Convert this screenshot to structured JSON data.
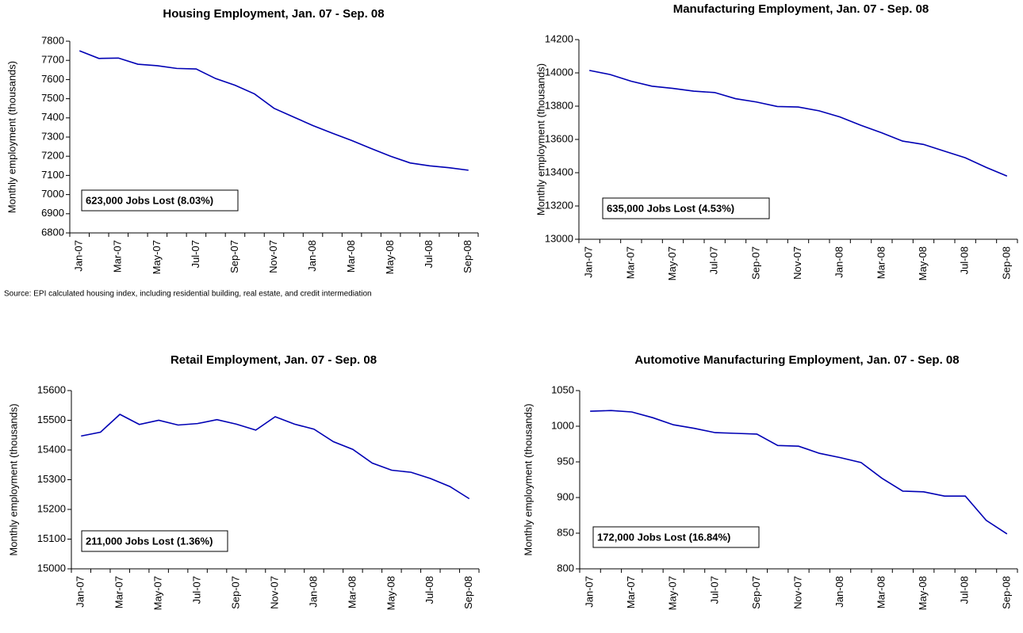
{
  "chart_data": [
    {
      "type": "line",
      "title": "Housing Employment, Jan. 07 - Sep. 08",
      "ylabel": "Monthly employment (thousands)",
      "annotation": "623,000 Jobs Lost (8.03%)",
      "note": "Source: EPI calculated housing index, including residential building, real estate, and credit intermediation",
      "categories": [
        "Jan-07",
        null,
        "Mar-07",
        null,
        "May-07",
        null,
        "Jul-07",
        null,
        "Sep-07",
        null,
        "Nov-07",
        null,
        "Jan-08",
        null,
        "Mar-08",
        null,
        "May-08",
        null,
        "Jul-08",
        null,
        "Sep-08"
      ],
      "values": [
        7750,
        7710,
        7712,
        7680,
        7672,
        7658,
        7655,
        7605,
        7570,
        7525,
        7450,
        7405,
        7360,
        7320,
        7282,
        7240,
        7200,
        7165,
        7150,
        7140,
        7127
      ],
      "color": "#0000b4",
      "ylim": [
        6800,
        7800
      ],
      "yticks": [
        6800,
        6900,
        7000,
        7100,
        7200,
        7300,
        7400,
        7500,
        7600,
        7700,
        7800
      ]
    },
    {
      "type": "line",
      "title": "Manufacturing Employment, Jan. 07 - Sep. 08",
      "ylabel": "Monthly employment (thousands)",
      "annotation": "635,000 Jobs Lost (4.53%)",
      "categories": [
        "Jan-07",
        null,
        "Mar-07",
        null,
        "May-07",
        null,
        "Jul-07",
        null,
        "Sep-07",
        null,
        "Nov-07",
        null,
        "Jan-08",
        null,
        "Mar-08",
        null,
        "May-08",
        null,
        "Jul-08",
        null,
        "Sep-08"
      ],
      "values": [
        14015,
        13990,
        13950,
        13920,
        13907,
        13890,
        13882,
        13845,
        13825,
        13798,
        13795,
        13772,
        13735,
        13685,
        13640,
        13590,
        13570,
        13530,
        13490,
        13432,
        13380
      ],
      "color": "#0000b4",
      "ylim": [
        13000,
        14200
      ],
      "yticks": [
        13000,
        13200,
        13400,
        13600,
        13800,
        14000,
        14200
      ]
    },
    {
      "type": "line",
      "title": "Retail Employment, Jan. 07 - Sep. 08",
      "ylabel": "Monthly employment (thousands)",
      "annotation": "211,000 Jobs Lost (1.36%)",
      "categories": [
        "Jan-07",
        null,
        "Mar-07",
        null,
        "May-07",
        null,
        "Jul-07",
        null,
        "Sep-07",
        null,
        "Nov-07",
        null,
        "Jan-08",
        null,
        "Mar-08",
        null,
        "May-08",
        null,
        "Jul-08",
        null,
        "Sep-08"
      ],
      "values": [
        15447,
        15460,
        15520,
        15486,
        15500,
        15484,
        15489,
        15502,
        15487,
        15467,
        15512,
        15487,
        15470,
        15428,
        15402,
        15356,
        15332,
        15325,
        15304,
        15277,
        15236
      ],
      "color": "#0000b4",
      "ylim": [
        15000,
        15600
      ],
      "yticks": [
        15000,
        15100,
        15200,
        15300,
        15400,
        15500,
        15600
      ]
    },
    {
      "type": "line",
      "title": "Automotive Manufacturing Employment, Jan. 07 - Sep. 08",
      "ylabel": "Monthly employment (thousands)",
      "annotation": "172,000 Jobs Lost (16.84%)",
      "categories": [
        "Jan-07",
        null,
        "Mar-07",
        null,
        "May-07",
        null,
        "Jul-07",
        null,
        "Sep-07",
        null,
        "Nov-07",
        null,
        "Jan-08",
        null,
        "Mar-08",
        null,
        "May-08",
        null,
        "Jul-08",
        null,
        "Sep-08"
      ],
      "values": [
        1021,
        1022,
        1020,
        1012,
        1002,
        997,
        991,
        990,
        989,
        973,
        972,
        962,
        956,
        949,
        927,
        909,
        908,
        902,
        902,
        868,
        849
      ],
      "color": "#0000b4",
      "ylim": [
        800,
        1050
      ],
      "yticks": [
        800,
        850,
        900,
        950,
        1000,
        1050
      ]
    }
  ]
}
